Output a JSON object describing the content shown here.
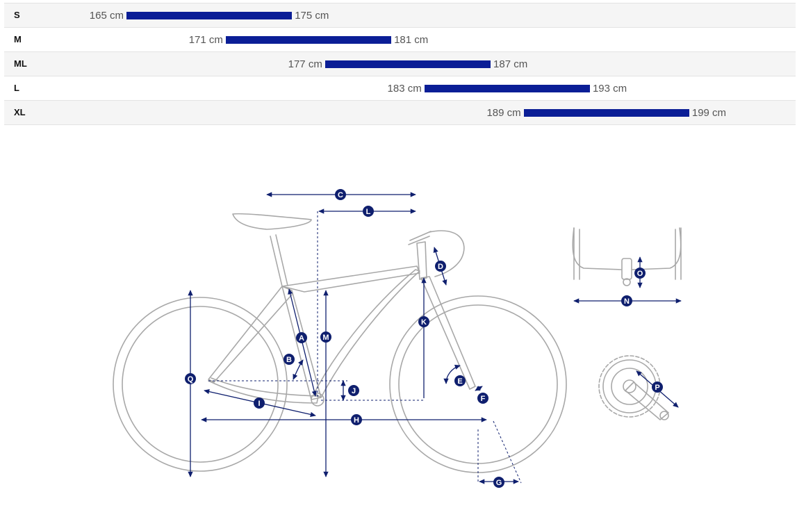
{
  "size_chart": {
    "rows": [
      {
        "size": "S",
        "min": "165 cm",
        "max": "175 cm",
        "min_cm": 165,
        "max_cm": 175
      },
      {
        "size": "M",
        "min": "171 cm",
        "max": "181 cm",
        "min_cm": 171,
        "max_cm": 181
      },
      {
        "size": "ML",
        "min": "177 cm",
        "max": "187 cm",
        "min_cm": 177,
        "max_cm": 187
      },
      {
        "size": "L",
        "min": "183 cm",
        "max": "193 cm",
        "min_cm": 183,
        "max_cm": 193
      },
      {
        "size": "XL",
        "min": "189 cm",
        "max": "199 cm",
        "min_cm": 189,
        "max_cm": 199
      }
    ],
    "bar_color": "#0b1e96"
  },
  "geometry_diagram": {
    "marker_color": "#0f1f6e",
    "frame_color": "#a8a8a8",
    "labels": {
      "A": "A",
      "B": "B",
      "C": "C",
      "D": "D",
      "E": "E",
      "F": "F",
      "G": "G",
      "H": "H",
      "I": "I",
      "J": "J",
      "K": "K",
      "L": "L",
      "M": "M",
      "N": "N",
      "O": "O",
      "P": "P",
      "Q": "Q"
    }
  }
}
